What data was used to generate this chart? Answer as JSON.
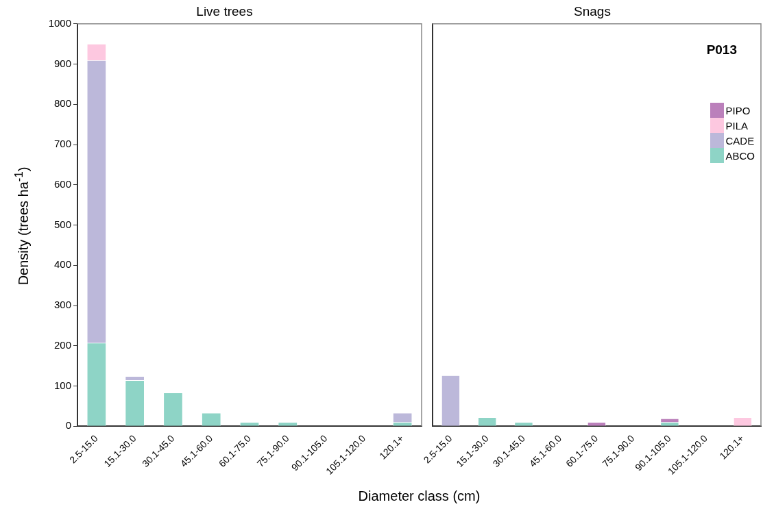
{
  "chart_data": [
    {
      "type": "bar",
      "title": "Live trees",
      "xlabel": "Diameter class (cm)",
      "ylabel": "Density (trees ha$^{-1}$)",
      "stacked": true,
      "categories": [
        "2.5-15.0",
        "15.1-30.0",
        "30.1-45.0",
        "45.1-60.0",
        "60.1-75.0",
        "75.1-90.0",
        "90.1-105.0",
        "105.1-120.0",
        "120.1+"
      ],
      "series": [
        {
          "color": "#8ed4c6",
          "values": [
            207,
            114,
            83,
            33,
            10,
            10,
            0,
            0,
            10
          ]
        },
        {
          "color": "#bcb8da",
          "values": [
            702,
            10,
            0,
            0,
            0,
            0,
            0,
            0,
            23
          ]
        },
        {
          "color": "#fdc8e0",
          "values": [
            41,
            0,
            0,
            0,
            0,
            0,
            0,
            0,
            0
          ]
        },
        {
          "color": "#bb80bb",
          "values": [
            0,
            0,
            0,
            0,
            0,
            0,
            0,
            0,
            0
          ]
        }
      ],
      "ylim": [
        0,
        1000
      ],
      "yticks": [
        0,
        100,
        200,
        300,
        400,
        500,
        600,
        700,
        800,
        900,
        1000
      ],
      "grid": false
    },
    {
      "type": "bar",
      "title": "Snags",
      "stacked": true,
      "annotations": [
        "P013"
      ],
      "legend": "top right",
      "tick_labels": "x",
      "categories": [
        "2.5-15.0",
        "15.1-30.0",
        "30.1-45.0",
        "45.1-60.0",
        "60.1-75.0",
        "75.1-90.0",
        "90.1-105.0",
        "105.1-120.0",
        "120.1+"
      ],
      "series": [
        {
          "name": "ABCO",
          "color": "#8ed4c6",
          "values": [
            0,
            22,
            10,
            0,
            0,
            0,
            10,
            0,
            0
          ]
        },
        {
          "name": "CADE",
          "color": "#bcb8da",
          "values": [
            126,
            0,
            0,
            0,
            0,
            0,
            0,
            0,
            0
          ]
        },
        {
          "name": "PILA",
          "color": "#fdc8e0",
          "values": [
            0,
            0,
            0,
            0,
            0,
            0,
            0,
            0,
            22
          ]
        },
        {
          "name": "PIPO",
          "color": "#bb80bb",
          "values": [
            0,
            0,
            0,
            0,
            10,
            0,
            9,
            0,
            0
          ]
        }
      ],
      "ylim": [
        0,
        1000
      ],
      "yticks": [
        0,
        100,
        200,
        300,
        400,
        500,
        600,
        700,
        800,
        900,
        1000
      ],
      "grid": false
    }
  ]
}
